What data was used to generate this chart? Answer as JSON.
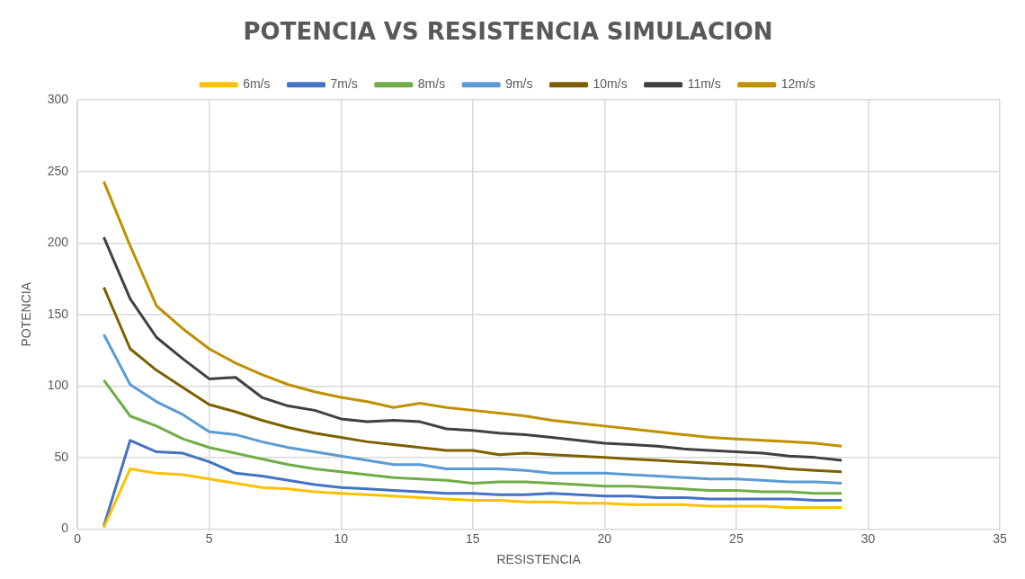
{
  "chart_data": {
    "type": "line",
    "title": "POTENCIA VS RESISTENCIA SIMULACION",
    "xlabel": "RESISTENCIA",
    "ylabel": "POTENCIA",
    "x": [
      1,
      2,
      3,
      4,
      5,
      6,
      7,
      8,
      9,
      10,
      11,
      12,
      13,
      14,
      15,
      16,
      17,
      18,
      19,
      20,
      21,
      22,
      23,
      24,
      25,
      26,
      27,
      28,
      29
    ],
    "series": [
      {
        "name": "6m/s",
        "color": "#ffc000",
        "values": [
          1,
          42,
          39,
          38,
          35,
          32,
          29,
          28,
          26,
          25,
          24,
          23,
          22,
          21,
          20,
          20,
          19,
          19,
          18,
          18,
          17,
          17,
          17,
          16,
          16,
          16,
          15,
          15,
          15
        ]
      },
      {
        "name": "7m/s",
        "color": "#4472c4",
        "values": [
          2,
          62,
          54,
          53,
          47,
          39,
          37,
          34,
          31,
          29,
          28,
          27,
          26,
          25,
          25,
          24,
          24,
          25,
          24,
          23,
          23,
          22,
          22,
          21,
          21,
          21,
          21,
          20,
          20
        ]
      },
      {
        "name": "8m/s",
        "color": "#70ad47",
        "values": [
          104,
          79,
          72,
          63,
          57,
          53,
          49,
          45,
          42,
          40,
          38,
          36,
          35,
          34,
          32,
          33,
          33,
          32,
          31,
          30,
          30,
          29,
          28,
          27,
          27,
          26,
          26,
          25,
          25
        ]
      },
      {
        "name": "9m/s",
        "color": "#5b9bd5",
        "values": [
          136,
          101,
          89,
          80,
          68,
          66,
          61,
          57,
          54,
          51,
          48,
          45,
          45,
          42,
          42,
          42,
          41,
          39,
          39,
          39,
          38,
          37,
          36,
          35,
          35,
          34,
          33,
          33,
          32
        ]
      },
      {
        "name": "10m/s",
        "color": "#7f6000",
        "values": [
          169,
          126,
          111,
          99,
          87,
          82,
          76,
          71,
          67,
          64,
          61,
          59,
          57,
          55,
          55,
          52,
          53,
          52,
          51,
          50,
          49,
          48,
          47,
          46,
          45,
          44,
          42,
          41,
          40
        ]
      },
      {
        "name": "11m/s",
        "color": "#404040",
        "values": [
          204,
          161,
          134,
          119,
          105,
          106,
          92,
          86,
          83,
          77,
          75,
          76,
          75,
          70,
          69,
          67,
          66,
          64,
          62,
          60,
          59,
          58,
          56,
          55,
          54,
          53,
          51,
          50,
          48
        ]
      },
      {
        "name": "12m/s",
        "color": "#bf9000",
        "values": [
          243,
          198,
          156,
          140,
          126,
          116,
          108,
          101,
          96,
          92,
          89,
          85,
          88,
          85,
          83,
          81,
          79,
          76,
          74,
          72,
          70,
          68,
          66,
          64,
          63,
          62,
          61,
          60,
          58
        ]
      }
    ],
    "xlim": [
      0,
      35
    ],
    "xticks": [
      0,
      5,
      10,
      15,
      20,
      25,
      30,
      35
    ],
    "ylim": [
      0,
      300
    ],
    "yticks": [
      0,
      50,
      100,
      150,
      200,
      250,
      300
    ],
    "grid": true,
    "legend": "top",
    "marker": "none",
    "line_style": "solid"
  }
}
